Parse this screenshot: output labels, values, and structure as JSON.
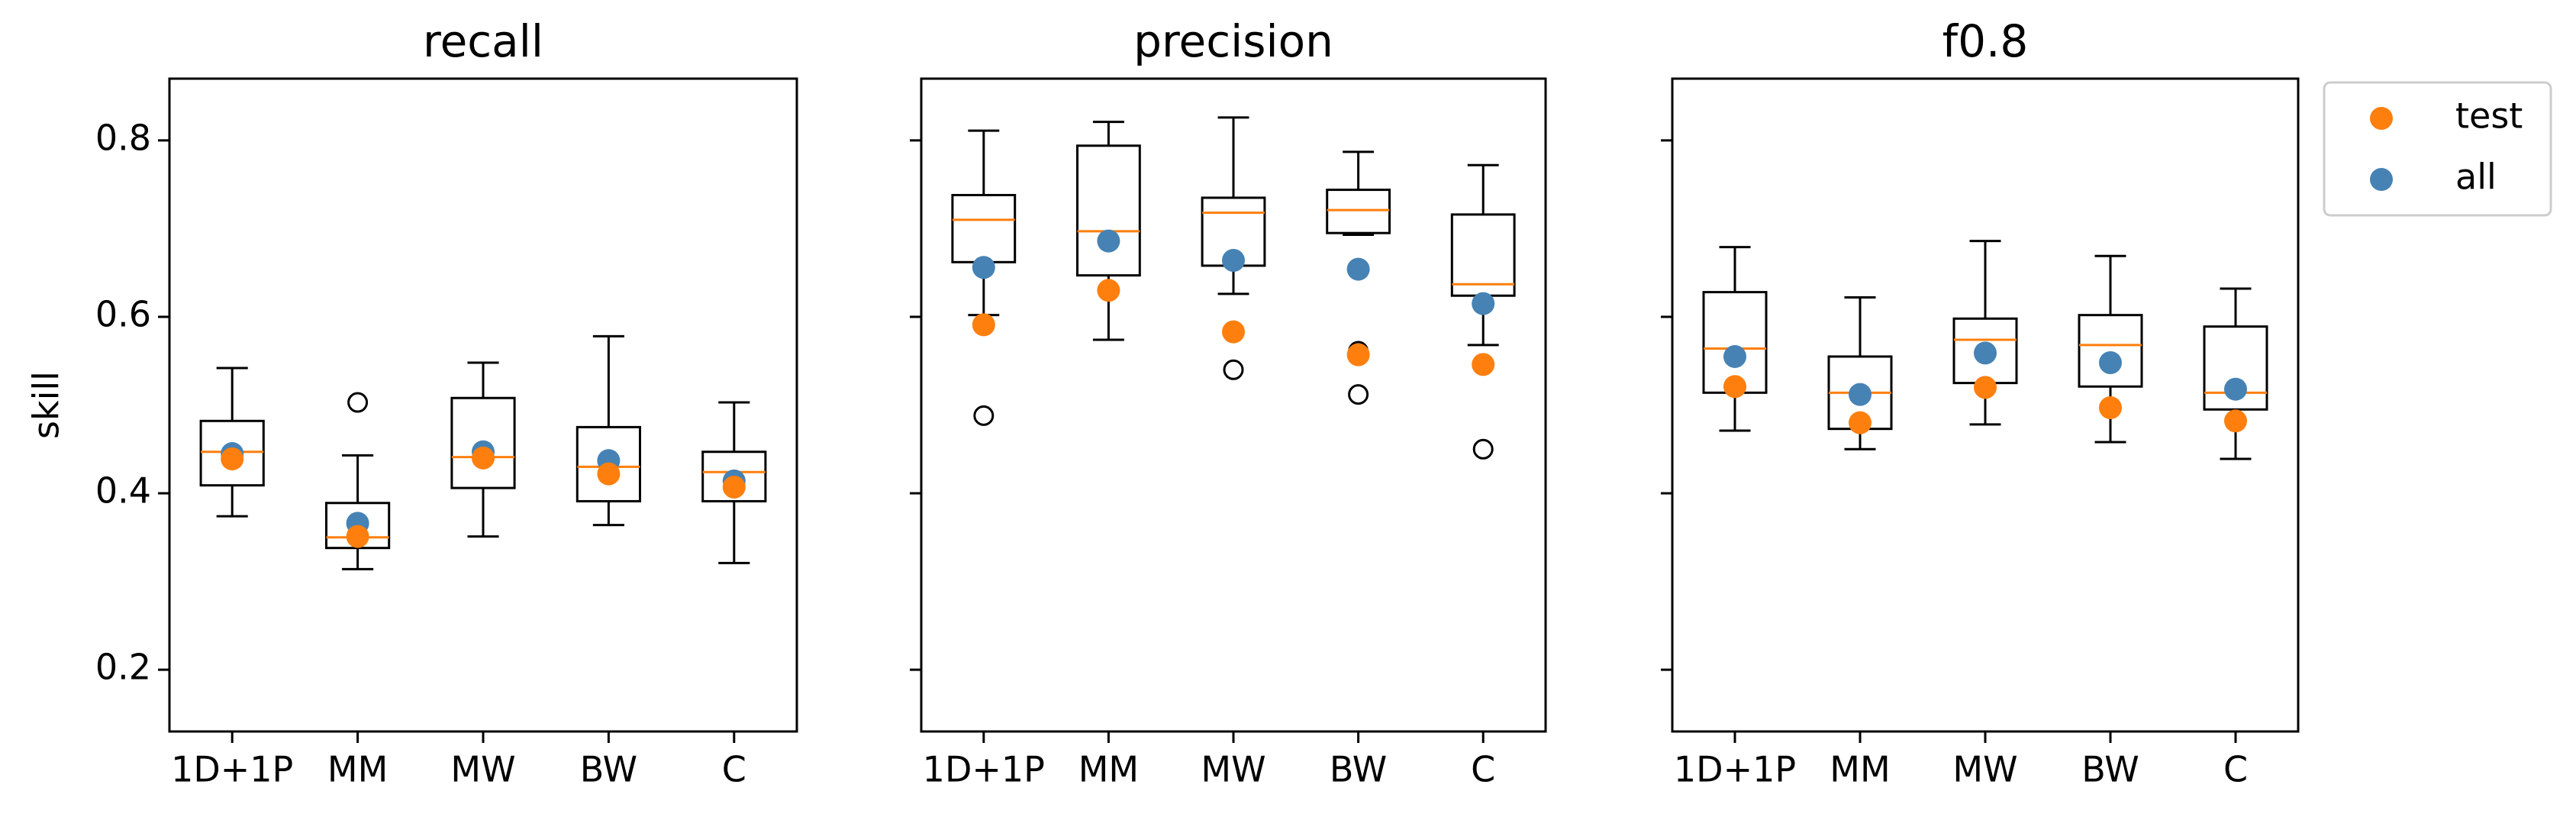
{
  "chart_data": [
    {
      "type": "box",
      "title": "recall",
      "ylabel": "skill",
      "ytick_labels": true,
      "categories": [
        "1D+1P",
        "MM",
        "MW",
        "BW",
        "C"
      ],
      "ylim": [
        0.13,
        0.87
      ],
      "yticks": [
        0.2,
        0.4,
        0.6,
        0.8
      ],
      "boxes": [
        {
          "whislo": 0.374,
          "q1": 0.409,
          "med": 0.447,
          "q3": 0.482,
          "whishi": 0.542,
          "fliers": []
        },
        {
          "whislo": 0.314,
          "q1": 0.338,
          "med": 0.35,
          "q3": 0.389,
          "whishi": 0.443,
          "fliers": [
            0.503
          ]
        },
        {
          "whislo": 0.351,
          "q1": 0.406,
          "med": 0.441,
          "q3": 0.508,
          "whishi": 0.548,
          "fliers": []
        },
        {
          "whislo": 0.364,
          "q1": 0.391,
          "med": 0.43,
          "q3": 0.475,
          "whishi": 0.578,
          "fliers": []
        },
        {
          "whislo": 0.321,
          "q1": 0.391,
          "med": 0.424,
          "q3": 0.447,
          "whishi": 0.503,
          "fliers": []
        }
      ],
      "series": [
        {
          "name": "test",
          "color": "#ff7f0e",
          "values": [
            0.439,
            0.351,
            0.44,
            0.422,
            0.407
          ]
        },
        {
          "name": "all",
          "color": "#4682b4",
          "values": [
            0.445,
            0.366,
            0.447,
            0.437,
            0.414
          ]
        }
      ]
    },
    {
      "type": "box",
      "title": "precision",
      "ytick_labels": false,
      "categories": [
        "1D+1P",
        "MM",
        "MW",
        "BW",
        "C"
      ],
      "ylim": [
        0.13,
        0.87
      ],
      "yticks": [
        0.2,
        0.4,
        0.6,
        0.8
      ],
      "boxes": [
        {
          "whislo": 0.602,
          "q1": 0.662,
          "med": 0.71,
          "q3": 0.738,
          "whishi": 0.811,
          "fliers": [
            0.488
          ]
        },
        {
          "whislo": 0.574,
          "q1": 0.647,
          "med": 0.697,
          "q3": 0.794,
          "whishi": 0.821,
          "fliers": []
        },
        {
          "whislo": 0.626,
          "q1": 0.658,
          "med": 0.718,
          "q3": 0.735,
          "whishi": 0.826,
          "fliers": [
            0.54
          ]
        },
        {
          "whislo": 0.693,
          "q1": 0.695,
          "med": 0.721,
          "q3": 0.744,
          "whishi": 0.787,
          "fliers": [
            0.561,
            0.512
          ]
        },
        {
          "whislo": 0.568,
          "q1": 0.624,
          "med": 0.637,
          "q3": 0.716,
          "whishi": 0.772,
          "fliers": [
            0.45
          ]
        }
      ],
      "series": [
        {
          "name": "test",
          "color": "#ff7f0e",
          "values": [
            0.591,
            0.63,
            0.583,
            0.557,
            0.546
          ]
        },
        {
          "name": "all",
          "color": "#4682b4",
          "values": [
            0.656,
            0.686,
            0.664,
            0.654,
            0.615
          ]
        }
      ]
    },
    {
      "type": "box",
      "title": "f0.8",
      "ytick_labels": false,
      "legend": "outside upper right",
      "categories": [
        "1D+1P",
        "MM",
        "MW",
        "BW",
        "C"
      ],
      "ylim": [
        0.13,
        0.87
      ],
      "yticks": [
        0.2,
        0.4,
        0.6,
        0.8
      ],
      "boxes": [
        {
          "whislo": 0.471,
          "q1": 0.514,
          "med": 0.564,
          "q3": 0.628,
          "whishi": 0.679,
          "fliers": []
        },
        {
          "whislo": 0.45,
          "q1": 0.473,
          "med": 0.514,
          "q3": 0.555,
          "whishi": 0.622,
          "fliers": []
        },
        {
          "whislo": 0.478,
          "q1": 0.525,
          "med": 0.574,
          "q3": 0.598,
          "whishi": 0.686,
          "fliers": []
        },
        {
          "whislo": 0.458,
          "q1": 0.521,
          "med": 0.568,
          "q3": 0.602,
          "whishi": 0.669,
          "fliers": []
        },
        {
          "whislo": 0.439,
          "q1": 0.495,
          "med": 0.514,
          "q3": 0.589,
          "whishi": 0.632,
          "fliers": []
        }
      ],
      "series": [
        {
          "name": "test",
          "color": "#ff7f0e",
          "values": [
            0.521,
            0.48,
            0.52,
            0.497,
            0.482
          ]
        },
        {
          "name": "all",
          "color": "#4682b4",
          "values": [
            0.555,
            0.512,
            0.559,
            0.548,
            0.518
          ]
        }
      ]
    }
  ]
}
